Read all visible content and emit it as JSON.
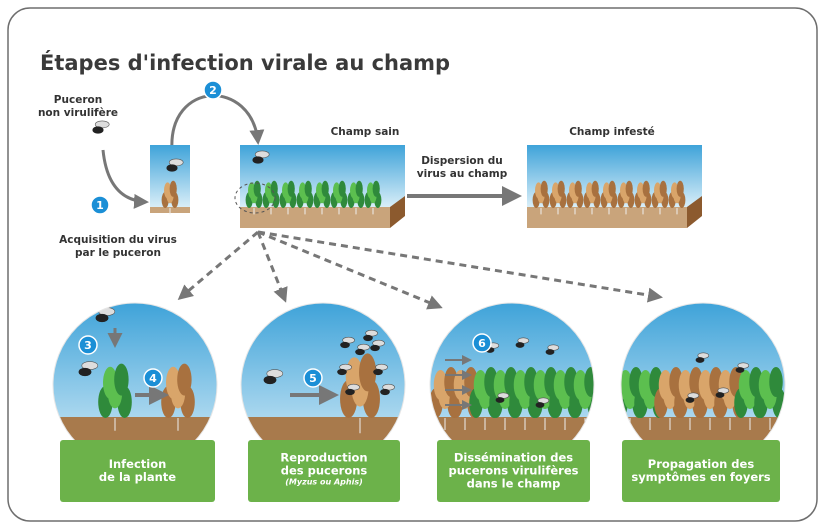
{
  "title": "Étapes d'infection virale au champ",
  "top": {
    "aphid_label": [
      "Puceron",
      "non virulifère"
    ],
    "acquisition_label": [
      "Acquisition du virus",
      "par le puceron"
    ],
    "healthy_field": "Champ sain",
    "infested_field": "Champ infesté",
    "dispersion_label": [
      "Dispersion du",
      "virus au champ"
    ]
  },
  "steps": [
    "1",
    "2",
    "3",
    "4",
    "5",
    "6"
  ],
  "panels": [
    {
      "label": [
        "Infection",
        "de la plante"
      ]
    },
    {
      "label": [
        "Reproduction",
        "des pucerons"
      ],
      "note": "(Myzus ou Aphis)"
    },
    {
      "label": [
        "Dissémination des",
        "pucerons virulifères",
        "dans le champ"
      ]
    },
    {
      "label": [
        "Propagation des",
        "symptômes en foyers"
      ]
    }
  ]
}
